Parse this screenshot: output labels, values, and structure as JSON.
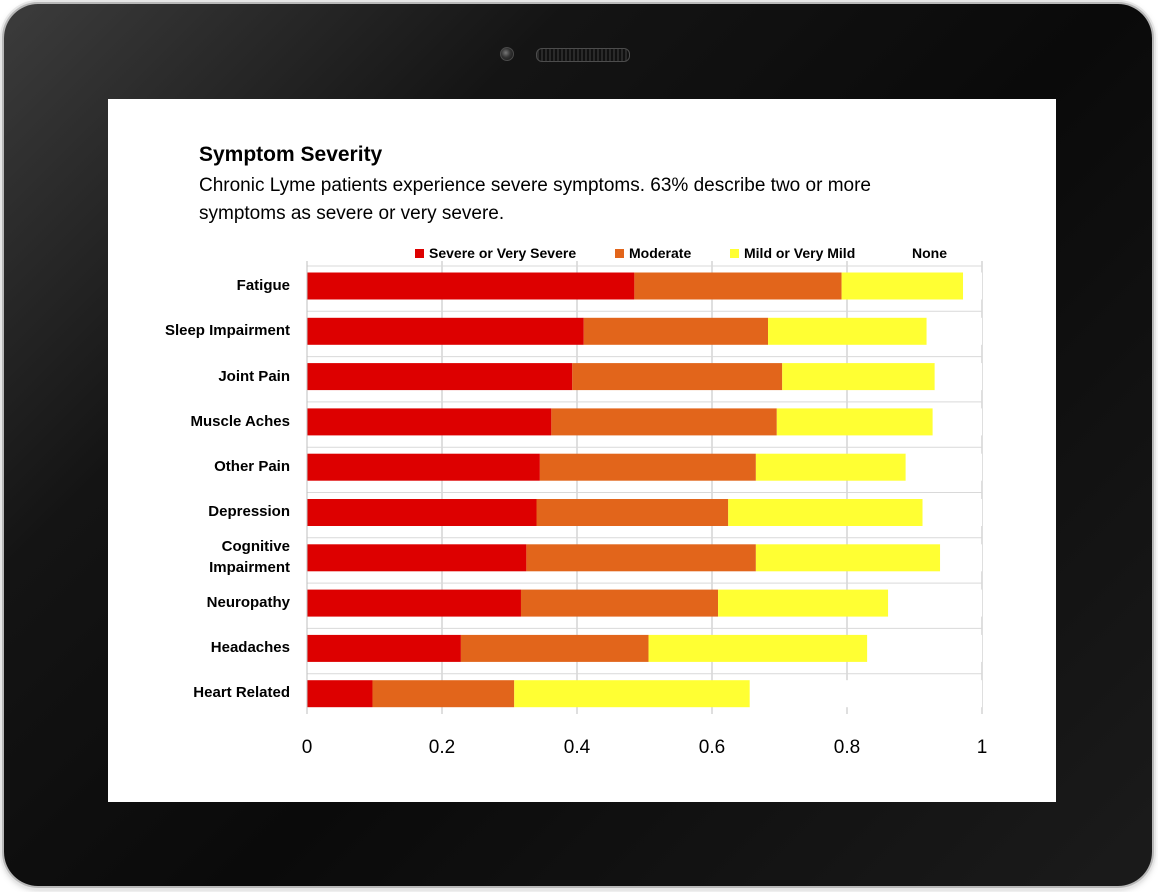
{
  "chart_data": {
    "type": "bar",
    "orientation": "horizontal",
    "stacked": true,
    "title": "Symptom Severity",
    "subtitle": "Chronic Lyme patients experience severe symptoms. 63% describe two or more symptoms as severe or very severe.",
    "categories": [
      "Fatigue",
      "Sleep Impairment",
      "Joint Pain",
      "Muscle Aches",
      "Other Pain",
      "Depression",
      "Cognitive\nImpairment",
      "Neuropathy",
      "Headaches",
      "Heart Related"
    ],
    "series": [
      {
        "name": "Severe or Very Severe",
        "color": "#dd0000",
        "values": [
          0.485,
          0.41,
          0.393,
          0.362,
          0.345,
          0.34,
          0.325,
          0.317,
          0.228,
          0.097
        ]
      },
      {
        "name": "Moderate",
        "color": "#e2651b",
        "values": [
          0.307,
          0.273,
          0.311,
          0.334,
          0.32,
          0.284,
          0.34,
          0.292,
          0.278,
          0.21
        ]
      },
      {
        "name": "Mild or Very Mild",
        "color": "#ffff33",
        "values": [
          0.18,
          0.235,
          0.226,
          0.231,
          0.222,
          0.288,
          0.273,
          0.252,
          0.324,
          0.349
        ]
      },
      {
        "name": "None",
        "color": "#ffffff",
        "values": [
          0.028,
          0.082,
          0.07,
          0.073,
          0.113,
          0.088,
          0.062,
          0.139,
          0.17,
          0.344
        ]
      }
    ],
    "x_ticks": [
      "0",
      "0.2",
      "0.4",
      "0.6",
      "0.8",
      "1"
    ],
    "xlim": [
      0,
      1
    ],
    "grid": true,
    "legend_position": "top"
  }
}
